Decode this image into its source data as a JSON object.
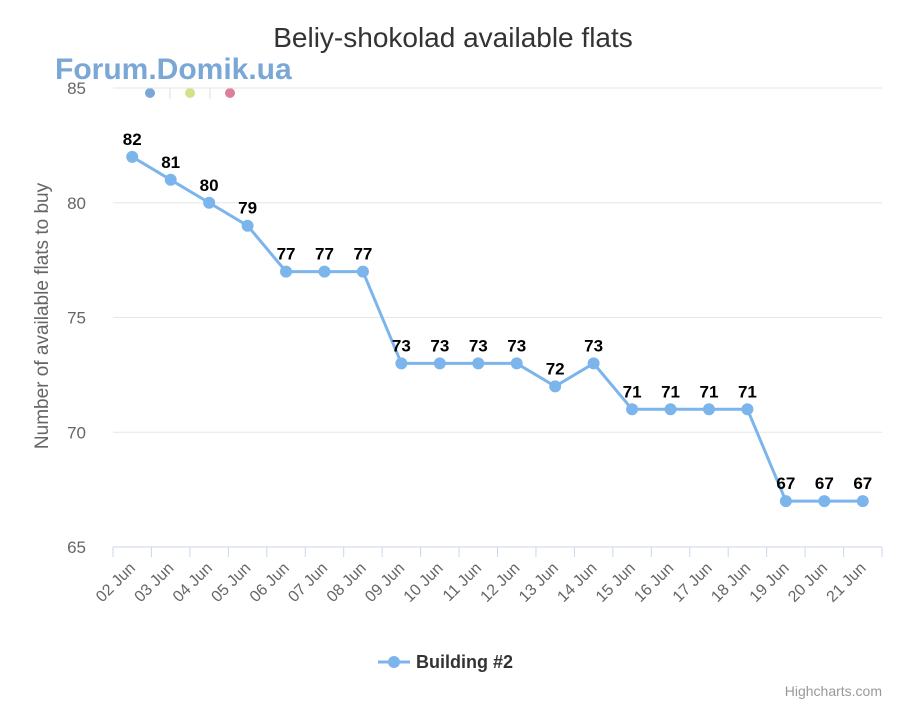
{
  "watermark": "Forum.Domik.ua",
  "credits": "Highcharts.com",
  "colors": {
    "series": "#7cb5ec",
    "grid": "#e6e6e6",
    "axis": "#ccd6eb",
    "dots": [
      "#7aa7d6",
      "#d4e08a",
      "#dc7f9b"
    ]
  },
  "chart_data": {
    "type": "line",
    "title": "Beliy-shokolad available flats",
    "xlabel": "",
    "ylabel": "Number of available flats to buy",
    "ylim": [
      65,
      85
    ],
    "yticks": [
      65,
      70,
      75,
      80,
      85
    ],
    "grid": true,
    "legend_position": "bottom-center",
    "categories": [
      "02 Jun",
      "03 Jun",
      "04 Jun",
      "05 Jun",
      "06 Jun",
      "07 Jun",
      "08 Jun",
      "09 Jun",
      "10 Jun",
      "11 Jun",
      "12 Jun",
      "13 Jun",
      "14 Jun",
      "15 Jun",
      "16 Jun",
      "17 Jun",
      "18 Jun",
      "19 Jun",
      "20 Jun",
      "21 Jun"
    ],
    "series": [
      {
        "name": "Building #2",
        "values": [
          82,
          81,
          80,
          79,
          77,
          77,
          77,
          73,
          73,
          73,
          73,
          72,
          73,
          71,
          71,
          71,
          71,
          67,
          67,
          67
        ]
      }
    ]
  }
}
